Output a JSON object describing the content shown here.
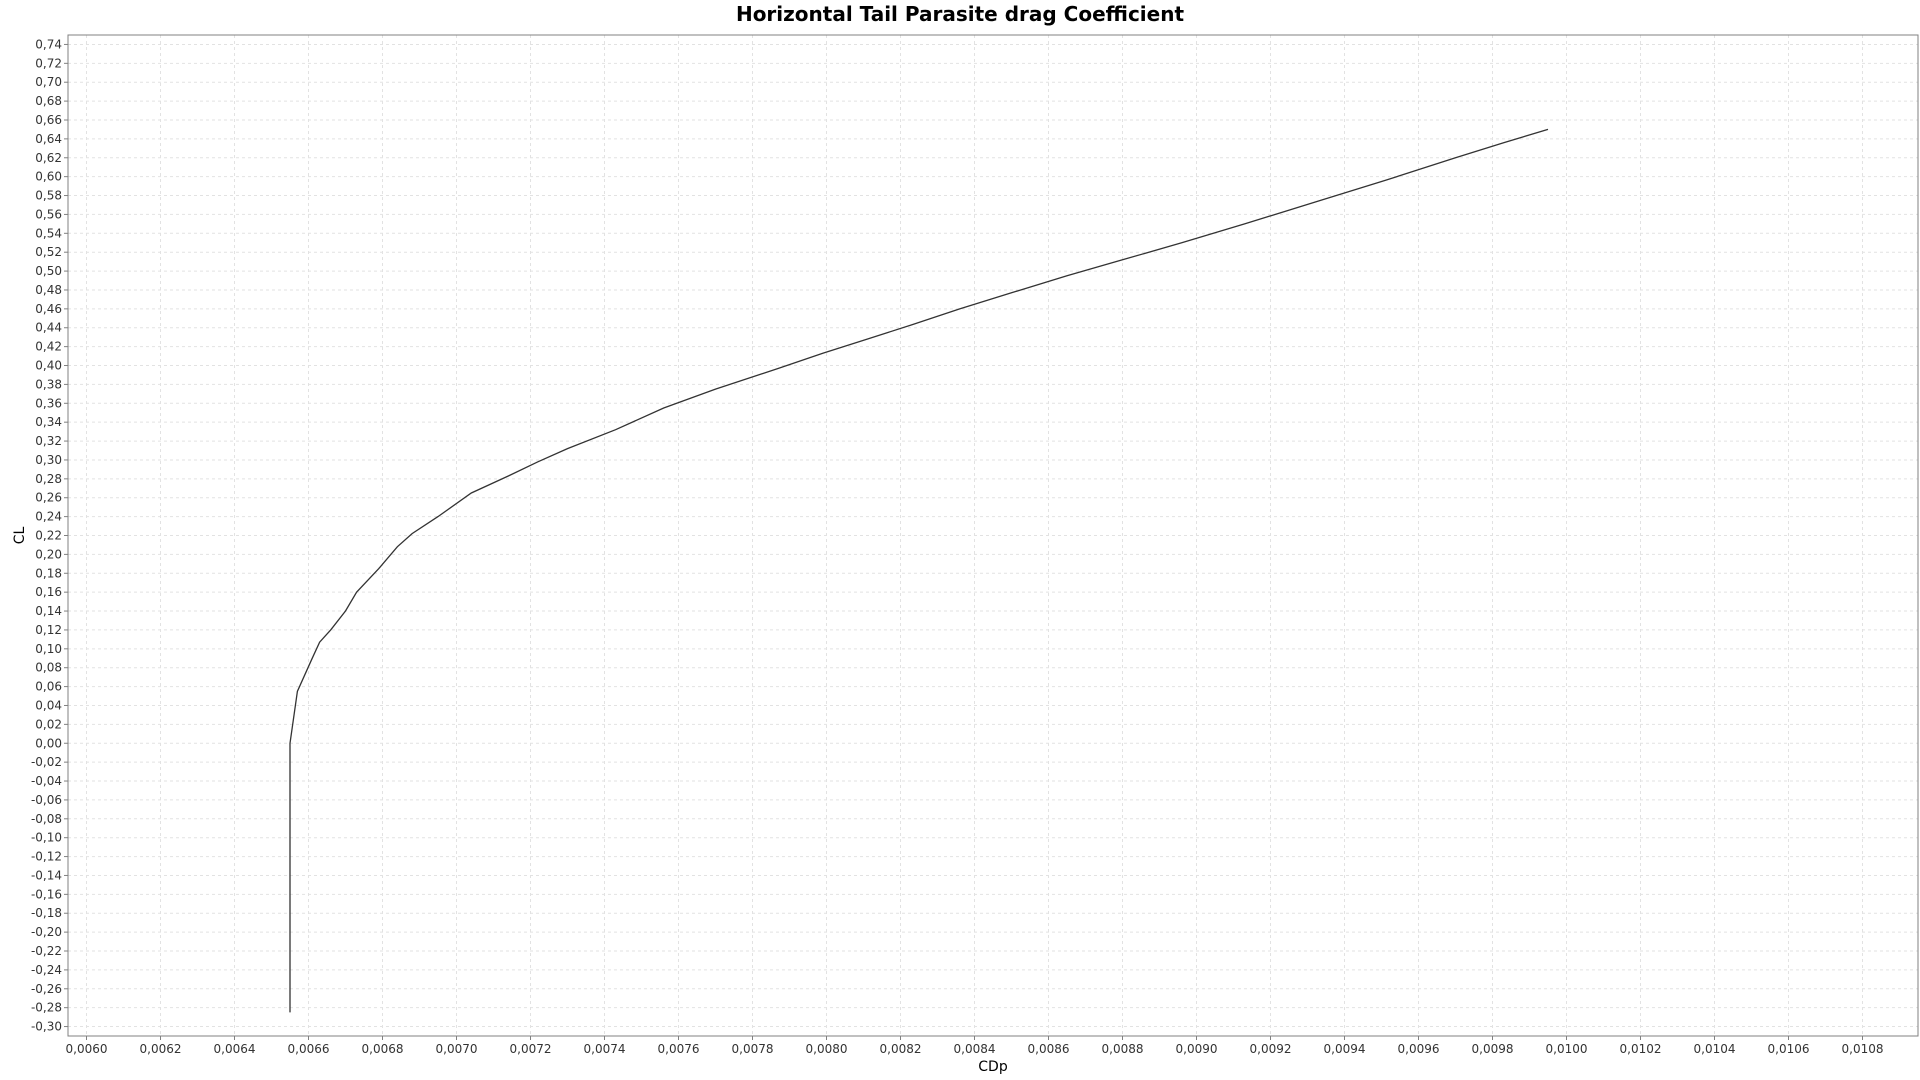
{
  "chart_data": {
    "type": "line",
    "title": "Horizontal Tail Parasite drag Coefficient",
    "xlabel": "CDp",
    "ylabel": "CL",
    "xlim": [
      0.00595,
      0.01095
    ],
    "ylim": [
      -0.31,
      0.75
    ],
    "x_ticks": [
      "0,0060",
      "0,0062",
      "0,0064",
      "0,0066",
      "0,0068",
      "0,0070",
      "0,0072",
      "0,0074",
      "0,0076",
      "0,0078",
      "0,0080",
      "0,0082",
      "0,0084",
      "0,0086",
      "0,0088",
      "0,0090",
      "0,0092",
      "0,0094",
      "0,0096",
      "0,0098",
      "0,0100",
      "0,0102",
      "0,0104",
      "0,0106",
      "0,0108"
    ],
    "y_ticks": [
      "0,74",
      "0,72",
      "0,70",
      "0,68",
      "0,66",
      "0,64",
      "0,62",
      "0,60",
      "0,58",
      "0,56",
      "0,54",
      "0,52",
      "0,50",
      "0,48",
      "0,46",
      "0,44",
      "0,42",
      "0,40",
      "0,38",
      "0,36",
      "0,34",
      "0,32",
      "0,30",
      "0,28",
      "0,26",
      "0,24",
      "0,22",
      "0,20",
      "0,18",
      "0,16",
      "0,14",
      "0,12",
      "0,10",
      "0,08",
      "0,06",
      "0,04",
      "0,02",
      "0,00",
      "-0,02",
      "-0,04",
      "-0,06",
      "-0,08",
      "-0,10",
      "-0,12",
      "-0,14",
      "-0,16",
      "-0,18",
      "-0,20",
      "-0,22",
      "-0,24",
      "-0,26",
      "-0,28",
      "-0,30"
    ],
    "grid": true,
    "series": [
      {
        "color": "#333333",
        "x": [
          0.00655,
          0.00655,
          0.00657,
          0.00661,
          0.00663,
          0.00666,
          0.0067,
          0.00673,
          0.00679,
          0.00684,
          0.00688,
          0.00695,
          0.00704,
          0.00714,
          0.00722,
          0.0073,
          0.00743,
          0.00756,
          0.0077,
          0.00787,
          0.00799,
          0.00811,
          0.00823,
          0.00836,
          0.0085,
          0.00865,
          0.0088,
          0.00896,
          0.00913,
          0.00932,
          0.00951,
          0.0097,
          0.00983,
          0.00995
        ],
        "y": [
          -0.285,
          0.0,
          0.055,
          0.09,
          0.107,
          0.12,
          0.14,
          0.16,
          0.185,
          0.208,
          0.222,
          0.24,
          0.265,
          0.283,
          0.298,
          0.312,
          0.332,
          0.355,
          0.375,
          0.397,
          0.413,
          0.428,
          0.443,
          0.46,
          0.477,
          0.495,
          0.512,
          0.53,
          0.55,
          0.573,
          0.596,
          0.62,
          0.636,
          0.65
        ]
      }
    ]
  }
}
